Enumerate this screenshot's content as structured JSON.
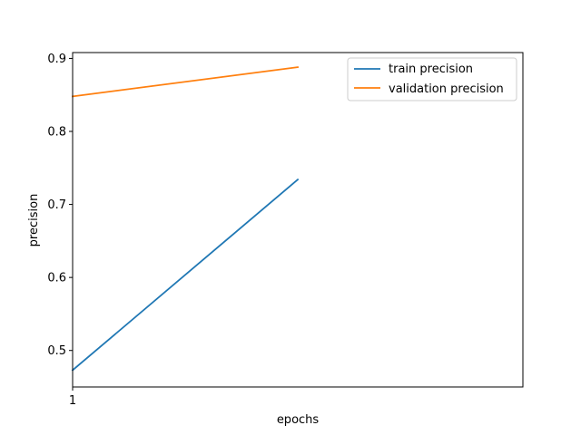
{
  "chart_data": {
    "type": "line",
    "title": "",
    "xlabel": "epochs",
    "ylabel": "precision",
    "x": [
      1,
      2
    ],
    "xticks": [
      "1"
    ],
    "xlim": [
      1,
      3
    ],
    "ylim": [
      0.45,
      0.908
    ],
    "yticks": [
      "0.5",
      "0.6",
      "0.7",
      "0.8",
      "0.9"
    ],
    "grid": false,
    "legend_position": "top-right",
    "series": [
      {
        "name": "train precision",
        "values": [
          0.473,
          0.734
        ],
        "color": "#1f77b4"
      },
      {
        "name": "validation precision",
        "values": [
          0.848,
          0.888
        ],
        "color": "#ff7f0e"
      }
    ]
  }
}
